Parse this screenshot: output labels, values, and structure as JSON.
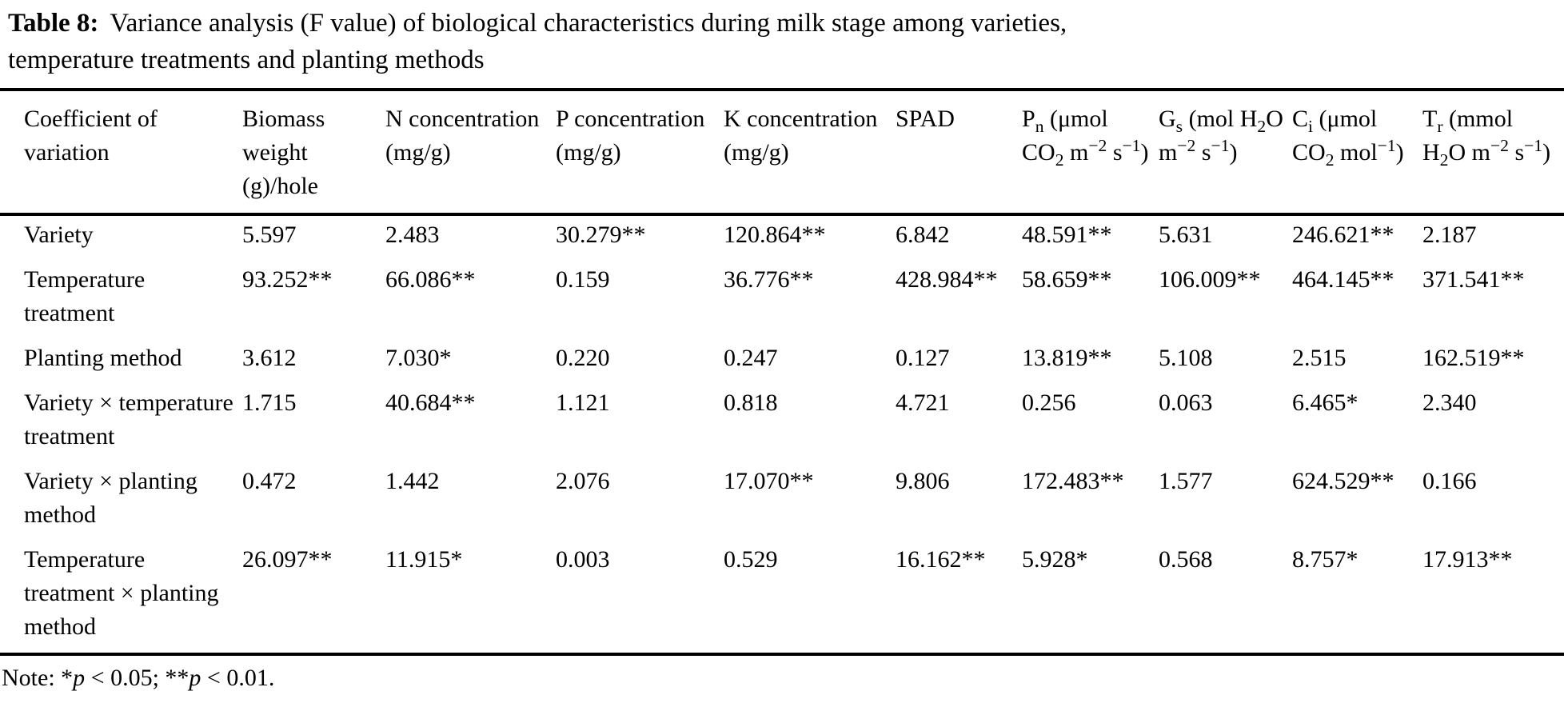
{
  "title": {
    "label": "Table 8:",
    "line1": "Variance analysis (F value) of biological characteristics during milk stage among varieties,",
    "line2": "temperature treatments and planting methods"
  },
  "table": {
    "columns": [
      {
        "label": "Coefficient of variation"
      },
      {
        "label": "Biomass weight (g)/hole"
      },
      {
        "label": "N concentration (mg/g)"
      },
      {
        "label": "P concentration (mg/g)"
      },
      {
        "label": "K concentration (mg/g)"
      },
      {
        "label": "SPAD"
      },
      {
        "label": "P_{n} (μmol CO_{2} m^{−2} s^{−1})"
      },
      {
        "label": "G_{s} (mol H_{2}O m^{−2} s^{−1})"
      },
      {
        "label": "C_{i} (μmol CO_{2} mol^{−1})"
      },
      {
        "label": "T_{r} (mmol H_{2}O m^{−2} s^{−1})"
      }
    ],
    "rows": [
      {
        "label": "Variety",
        "values": [
          "5.597",
          "2.483",
          "30.279**",
          "120.864**",
          "6.842",
          "48.591**",
          "5.631",
          "246.621**",
          "2.187"
        ]
      },
      {
        "label": "Temperature treatment",
        "values": [
          "93.252**",
          "66.086**",
          "0.159",
          "36.776**",
          "428.984**",
          "58.659**",
          "106.009**",
          "464.145**",
          "371.541**"
        ]
      },
      {
        "label": "Planting method",
        "values": [
          "3.612",
          "7.030*",
          "0.220",
          "0.247",
          "0.127",
          "13.819**",
          "5.108",
          "2.515",
          "162.519**"
        ]
      },
      {
        "label": "Variety × temperature treatment",
        "values": [
          "1.715",
          "40.684**",
          "1.121",
          "0.818",
          "4.721",
          "0.256",
          "0.063",
          "6.465*",
          "2.340"
        ]
      },
      {
        "label": "Variety × planting method",
        "values": [
          "0.472",
          "1.442",
          "2.076",
          "17.070**",
          "9.806",
          "172.483**",
          "1.577",
          "624.529**",
          "0.166"
        ]
      },
      {
        "label": "Temperature treatment × planting method",
        "values": [
          "26.097**",
          "11.915*",
          "0.003",
          "0.529",
          "16.162**",
          "5.928*",
          "0.568",
          "8.757*",
          "17.913**"
        ]
      }
    ]
  },
  "note": "Note: */{p} < 0.05; **/{p} < 0.01."
}
